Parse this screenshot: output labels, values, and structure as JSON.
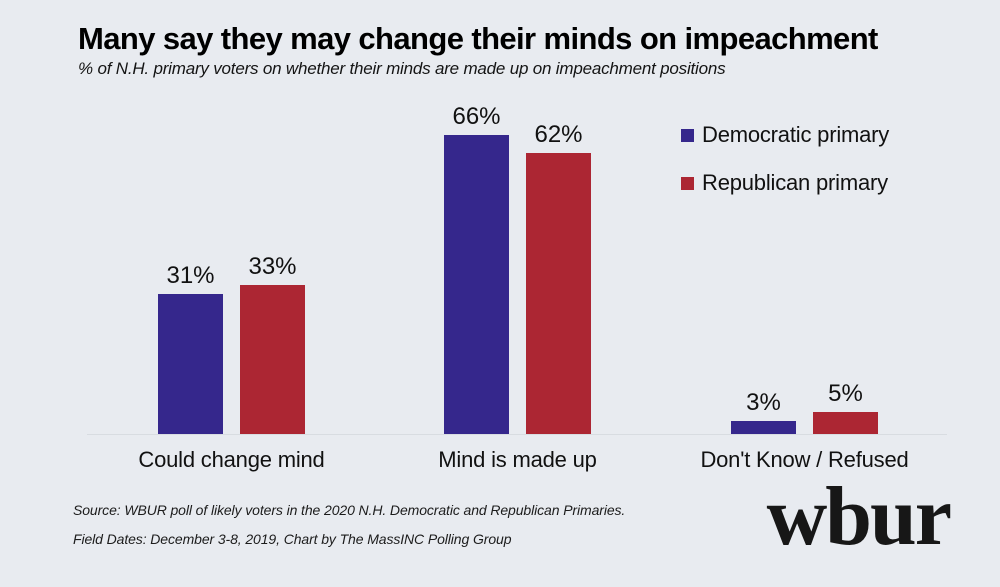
{
  "chart": {
    "title": "Many say they may change their minds on impeachment",
    "subtitle": "% of N.H. primary voters on whether their minds are made up on impeachment positions",
    "source_line1": "Source: WBUR poll of likely voters in the 2020 N.H. Democratic and Republican Primaries.",
    "source_line2": "Field Dates: December 3-8, 2019, Chart by The MassINC Polling Group",
    "logo_text": "wbur"
  },
  "chart_data": {
    "type": "bar",
    "title": "Many say they may change their minds on impeachment",
    "subtitle": "% of N.H. primary voters on whether their minds are made up on impeachment positions",
    "categories": [
      "Could change mind",
      "Mind is made up",
      "Don't Know / Refused"
    ],
    "series": [
      {
        "name": "Democratic primary",
        "color": "#35278C",
        "values": [
          31,
          66,
          3
        ]
      },
      {
        "name": "Republican primary",
        "color": "#AC2633",
        "values": [
          33,
          62,
          5
        ]
      }
    ],
    "value_suffix": "%",
    "value_labels_shown": true,
    "ylim": [
      0,
      70
    ],
    "grid": false,
    "y_axis_shown": false,
    "legend_position": "top-right"
  },
  "colors": {
    "background": "#E8EBF0",
    "baseline": "#D8DCE1",
    "democratic": "#35278C",
    "republican": "#AC2633",
    "text": "#111111"
  }
}
